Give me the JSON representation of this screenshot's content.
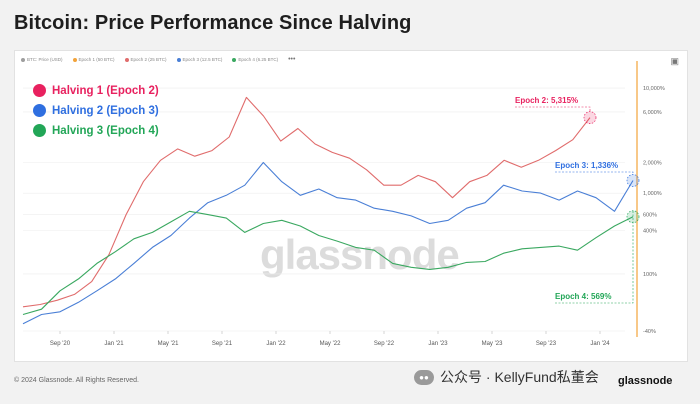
{
  "title": "Bitcoin: Price Performance Since Halving",
  "legend_strip": [
    {
      "label": "BTC: Price (USD)",
      "color": "#9e9e9e"
    },
    {
      "label": "Epoch 1 (50 BTC)",
      "color": "#f2a33a"
    },
    {
      "label": "Epoch 2 (25 BTC)",
      "color": "#e06c6c"
    },
    {
      "label": "Epoch 3 (12.5 BTC)",
      "color": "#4a7fd6"
    },
    {
      "label": "Epoch 4 (6.25 BTC)",
      "color": "#3aa860"
    }
  ],
  "more_icon": "more-dots-icon",
  "camera_icon": "camera-icon",
  "halvings": [
    {
      "label": "Halving 1 (Epoch 2)",
      "color": "#e8215f"
    },
    {
      "label": "Halving 2 (Epoch 3)",
      "color": "#2f6fe0"
    },
    {
      "label": "Halving 3 (Epoch 4)",
      "color": "#22a657"
    }
  ],
  "watermark": "glassnode",
  "footer": "© 2024 Glassnode. All Rights Reserved.",
  "brand_text": "公众号 · KellyFund私董会",
  "brand_icon": "wechat-icon",
  "logo": "glassnode",
  "colors": {
    "epoch2": "#e06c6c",
    "epoch3": "#4a7fd6",
    "epoch4": "#3aa860",
    "halving_marker": "#f2a33a",
    "epoch2_label": "#e8215f",
    "epoch3_label": "#2f6fe0",
    "epoch4_label": "#22a657"
  },
  "chart_data": {
    "type": "line",
    "title": "Bitcoin: Price Performance Since Halving",
    "yscale": "log",
    "ylim": [
      -40,
      15000
    ],
    "y_ticks": [
      "10,000%",
      "6,000%",
      "2,000%",
      "1,000%",
      "600%",
      "400%",
      "100%",
      "-40%"
    ],
    "x_ticks": [
      "Sep '20",
      "Jan '21",
      "May '21",
      "Sep '21",
      "Jan '22",
      "May '22",
      "Sep '22",
      "Jan '23",
      "May '23",
      "Sep '23",
      "Jan '24"
    ],
    "annotations": [
      {
        "text": "Epoch 2: 5,315%",
        "series": "Epoch 2"
      },
      {
        "text": "Epoch 3: 1,336%",
        "series": "Epoch 3"
      },
      {
        "text": "Epoch 4: 569%",
        "series": "Epoch 4"
      }
    ],
    "series": [
      {
        "name": "Epoch 2 (25 BTC)",
        "values": [
          0,
          5,
          15,
          30,
          70,
          200,
          600,
          1300,
          2100,
          2700,
          2300,
          2600,
          3500,
          8200,
          5500,
          3200,
          4200,
          3000,
          2500,
          2200,
          1700,
          1200,
          1200,
          1500,
          1300,
          900,
          1300,
          1500,
          2100,
          1800,
          2100,
          2600,
          3300,
          5315
        ]
      },
      {
        "name": "Epoch 3 (12.5 BTC)",
        "values": [
          -30,
          -15,
          -10,
          10,
          40,
          80,
          150,
          250,
          350,
          550,
          800,
          950,
          1200,
          2000,
          1300,
          950,
          1100,
          900,
          850,
          700,
          650,
          580,
          480,
          520,
          700,
          800,
          1200,
          1050,
          1000,
          850,
          1050,
          900,
          650,
          1336
        ]
      },
      {
        "name": "Epoch 4 (6.25 BTC)",
        "values": [
          -15,
          -5,
          40,
          80,
          150,
          220,
          320,
          380,
          500,
          650,
          600,
          550,
          380,
          480,
          520,
          450,
          350,
          300,
          250,
          230,
          150,
          130,
          120,
          130,
          155,
          160,
          210,
          240,
          250,
          260,
          230,
          330,
          450,
          569
        ]
      }
    ]
  }
}
